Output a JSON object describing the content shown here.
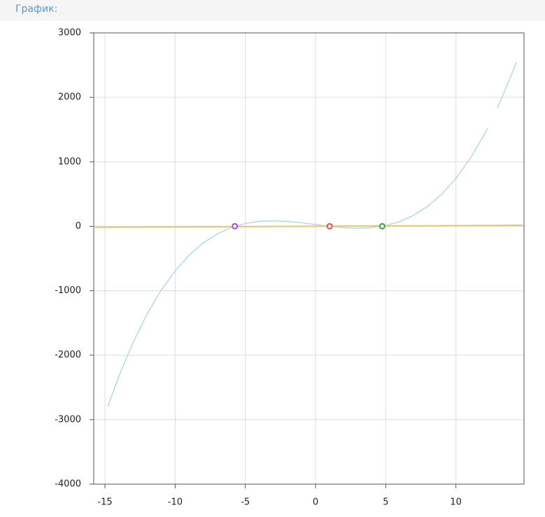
{
  "header": {
    "title": "График:"
  },
  "chart_data": {
    "type": "line",
    "xlim": [
      -15.8,
      14.85
    ],
    "ylim": [
      -4000,
      3000
    ],
    "xticks": [
      -15,
      -10,
      -5,
      0,
      5,
      10
    ],
    "yticks": [
      -4000,
      -3000,
      -2000,
      -1000,
      0,
      1000,
      2000,
      3000
    ],
    "grid": true,
    "series": [
      {
        "kind": "line",
        "color": "#aad4f0",
        "x": [
          -14.8,
          -14,
          -13,
          -12,
          -11,
          -10,
          -9,
          -8,
          -7,
          -6,
          -5,
          -4,
          -3,
          -2,
          -1,
          0,
          1,
          2,
          3,
          4,
          5,
          6,
          7,
          8,
          9,
          10,
          11,
          12,
          12.25,
          12.6,
          12.95,
          13,
          14,
          14.3
        ],
        "values": [
          -2795,
          -2320,
          -1802,
          -1361,
          -992,
          -690,
          -447,
          -258,
          -118,
          -19,
          44,
          77,
          85,
          76,
          55,
          27,
          0,
          -21,
          -31,
          -22,
          11,
          73,
          172,
          313,
          502,
          744,
          1047,
          1416,
          1519,
          null,
          1833,
          1856,
          2375,
          2547
        ]
      },
      {
        "kind": "line",
        "color": "#e8c66a",
        "x": [
          -15.8,
          14.85
        ],
        "values": [
          -15.8,
          14.85
        ]
      },
      {
        "kind": "marker",
        "color": "#9b4fd6",
        "x": [
          -5.75
        ],
        "values": [
          0
        ]
      },
      {
        "kind": "marker",
        "color": "#d9534f",
        "x": [
          1
        ],
        "values": [
          0
        ]
      },
      {
        "kind": "marker",
        "color": "#3a9b45",
        "x": [
          4.75
        ],
        "values": [
          0
        ]
      }
    ]
  }
}
